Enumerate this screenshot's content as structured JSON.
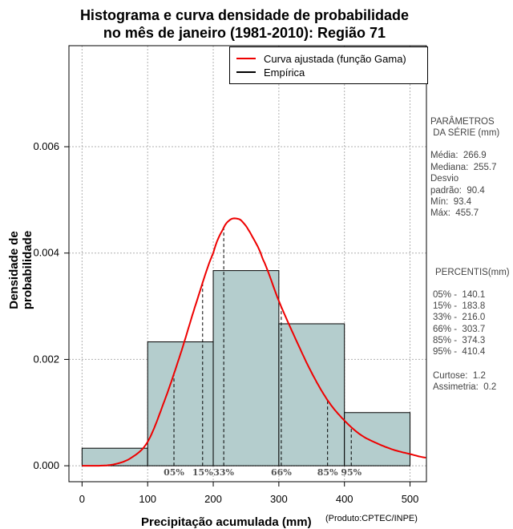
{
  "title_line1": "Histograma e curva densidade de probabilidade",
  "title_line2": "no mês de janeiro (1981-2010): Região 71",
  "colors": {
    "bar_fill": "#b4cdcd",
    "fitted_curve": "#ee0000",
    "empirical": "#000000"
  },
  "legend": {
    "fitted": "Curva ajustada (função Gama)",
    "empirical": "Empírica"
  },
  "side_panel": {
    "params_title_1": "PARÂMETROS",
    "params_title_2": " DA SÉRIE (mm)",
    "media": "Média:  266.9",
    "mediana": "Mediana:  255.7",
    "desvio_1": "Desvio",
    "desvio_2": "padrão:  90.4",
    "min": "Mín:  93.4",
    "max": "Máx:  455.7",
    "percentis_title": "PERCENTIS(mm)",
    "p05": "05% -  140.1",
    "p15": "15% -  183.8",
    "p33": "33% -  216.0",
    "p66": "66% -  303.7",
    "p85": "85% -  374.3",
    "p95": "95% -  410.4",
    "curtose": "Curtose:  1.2",
    "assimetria": "Assimetria:  0.2"
  },
  "credit": "(Produto:CPTEC/INPE)",
  "chart_data": {
    "type": "bar",
    "title": "Histograma e curva densidade de probabilidade no mês de janeiro (1981-2010): Região 71",
    "xlabel": "Precipitação acumulada (mm)",
    "ylabel": "Densidade de probabilidade",
    "xlim": [
      -20,
      525
    ],
    "ylim": [
      -0.0003,
      0.0079
    ],
    "grid": true,
    "legend_position": "top-right",
    "x_ticks": [
      0,
      100,
      200,
      300,
      400,
      500
    ],
    "x_tick_labels": [
      "0",
      "100",
      "200",
      "300",
      "400",
      "500"
    ],
    "y_ticks": [
      0,
      0.002,
      0.004,
      0.006
    ],
    "y_tick_labels": [
      "0.000",
      "0.002",
      "0.004",
      "0.006"
    ],
    "bins": [
      {
        "start": 0,
        "end": 100,
        "density": 0.00033
      },
      {
        "start": 100,
        "end": 200,
        "density": 0.00233
      },
      {
        "start": 200,
        "end": 300,
        "density": 0.00367
      },
      {
        "start": 300,
        "end": 400,
        "density": 0.00267
      },
      {
        "start": 400,
        "end": 500,
        "density": 0.001
      }
    ],
    "fitted_curve": {
      "name": "Curva ajustada (função Gama)",
      "x": [
        0,
        25,
        50,
        75,
        100,
        125,
        150,
        175,
        200,
        215,
        225,
        235,
        245,
        260,
        275,
        300,
        325,
        350,
        375,
        400,
        425,
        450,
        475,
        500,
        525
      ],
      "y": [
        0.0,
        0.0,
        3e-05,
        0.00015,
        0.00045,
        0.0012,
        0.0021,
        0.0031,
        0.004,
        0.00445,
        0.00462,
        0.00465,
        0.00458,
        0.0043,
        0.0039,
        0.0031,
        0.0024,
        0.00175,
        0.00122,
        0.00085,
        0.00058,
        0.00042,
        0.0003,
        0.00022,
        0.00015
      ]
    },
    "percentiles": [
      {
        "label": "05%",
        "value": 140.1
      },
      {
        "label": "15%",
        "value": 183.8
      },
      {
        "label": "33%",
        "value": 216.0
      },
      {
        "label": "66%",
        "value": 303.7
      },
      {
        "label": "85%",
        "value": 374.3
      },
      {
        "label": "95%",
        "value": 410.4
      }
    ]
  }
}
